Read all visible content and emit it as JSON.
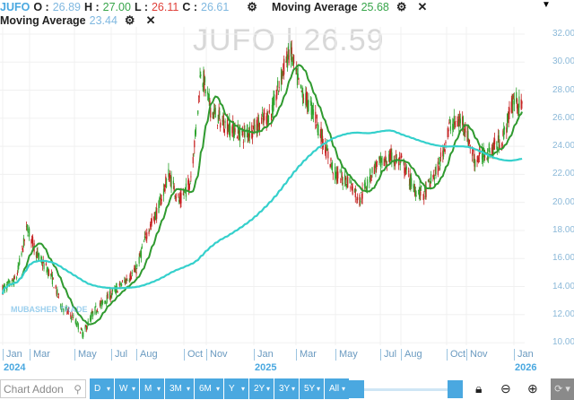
{
  "header": {
    "symbol": "JUFO",
    "o_label": "O :",
    "open": "26.89",
    "h_label": "H :",
    "high": "27.00",
    "l_label": "L :",
    "low": "26.11",
    "c_label": "C :",
    "close": "26.61",
    "ma1_label": "Moving Average",
    "ma1_value": "25.68",
    "ma2_label": "Moving Average",
    "ma2_value": "23.44"
  },
  "watermark": "JUFO | 26.59",
  "logo_text": "MUBASHER TRADE",
  "x_labels": [
    "Jan",
    "Mar",
    "May",
    "Jul",
    "Aug",
    "Oct",
    "Nov",
    "Jan",
    "Mar",
    "May",
    "Jul",
    "Aug",
    "Oct",
    "Nov",
    "Jan"
  ],
  "year_labels": [
    "2024",
    "2025",
    "2026"
  ],
  "y_labels": [
    "32.00",
    "30.00",
    "28.00",
    "26.00",
    "24.00",
    "22.00",
    "20.00",
    "18.00",
    "16.00",
    "14.00",
    "12.00",
    "10.00"
  ],
  "toolbar": {
    "addon_placeholder": "Chart Addon",
    "periods": [
      "D",
      "W",
      "M",
      "3M",
      "6M",
      "Y",
      "2Y",
      "3Y",
      "5Y",
      "All"
    ]
  },
  "colors": {
    "up": "#2ea42e",
    "down": "#c62020",
    "ma_short": "#2f9a2f",
    "ma_long": "#35d0cc",
    "accent": "#4aa8e0"
  },
  "chart_data": {
    "type": "candlestick",
    "ylim": [
      10,
      32
    ],
    "grid": true,
    "key_closes": [
      [
        "2024-01-01",
        13.8
      ],
      [
        "2024-01-20",
        14.5
      ],
      [
        "2024-02-05",
        18.2
      ],
      [
        "2024-02-20",
        16.2
      ],
      [
        "2024-03-10",
        14.8
      ],
      [
        "2024-03-25",
        12.6
      ],
      [
        "2024-04-10",
        11.8
      ],
      [
        "2024-04-25",
        10.6
      ],
      [
        "2024-05-10",
        12.2
      ],
      [
        "2024-05-30",
        13.2
      ],
      [
        "2024-06-20",
        14.2
      ],
      [
        "2024-07-10",
        15.2
      ],
      [
        "2024-07-25",
        17.8
      ],
      [
        "2024-08-10",
        19.5
      ],
      [
        "2024-08-25",
        22.0
      ],
      [
        "2024-09-10",
        20.0
      ],
      [
        "2024-09-25",
        21.5
      ],
      [
        "2024-10-05",
        26.0
      ],
      [
        "2024-10-10",
        29.5
      ],
      [
        "2024-10-25",
        26.5
      ],
      [
        "2024-11-15",
        25.5
      ],
      [
        "2024-12-10",
        24.8
      ],
      [
        "2024-12-30",
        25.5
      ],
      [
        "2025-01-20",
        26.5
      ],
      [
        "2025-02-05",
        29.5
      ],
      [
        "2025-02-15",
        30.8
      ],
      [
        "2025-03-01",
        28.0
      ],
      [
        "2025-03-20",
        26.5
      ],
      [
        "2025-04-05",
        24.0
      ],
      [
        "2025-04-20",
        22.0
      ],
      [
        "2025-05-10",
        21.5
      ],
      [
        "2025-05-25",
        20.2
      ],
      [
        "2025-06-15",
        22.5
      ],
      [
        "2025-07-10",
        23.2
      ],
      [
        "2025-07-25",
        22.8
      ],
      [
        "2025-08-10",
        21.0
      ],
      [
        "2025-08-25",
        20.6
      ],
      [
        "2025-09-15",
        22.5
      ],
      [
        "2025-10-01",
        25.5
      ],
      [
        "2025-10-20",
        25.8
      ],
      [
        "2025-11-05",
        23.0
      ],
      [
        "2025-11-25",
        23.6
      ],
      [
        "2025-12-15",
        24.5
      ],
      [
        "2026-01-01",
        27.5
      ],
      [
        "2026-01-12",
        26.61
      ]
    ],
    "moving_averages": [
      {
        "name": "Moving Average",
        "last": 25.68
      },
      {
        "name": "Moving Average",
        "last": 23.44
      }
    ]
  }
}
